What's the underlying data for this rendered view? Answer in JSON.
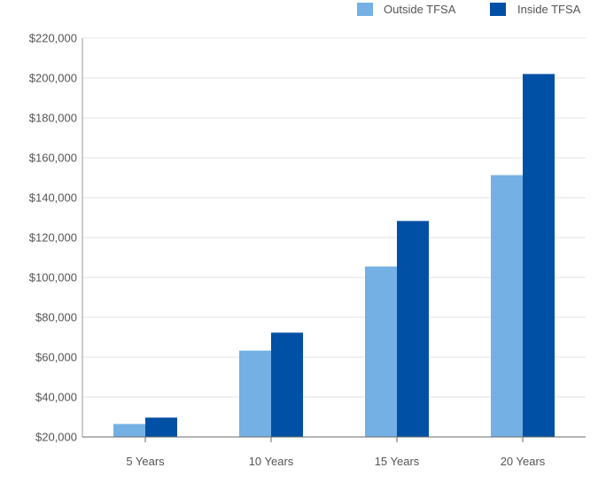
{
  "chart_data": {
    "type": "bar",
    "categories": [
      "5 Years",
      "10 Years",
      "15 Years",
      "20 Years"
    ],
    "series": [
      {
        "name": "Outside TFSA",
        "color": "#74b0e4",
        "values": [
          26500,
          63300,
          105500,
          151300
        ]
      },
      {
        "name": "Inside TFSA",
        "color": "#0050a5",
        "values": [
          29700,
          72300,
          128300,
          202000
        ]
      }
    ],
    "y_ticks": [
      "$20,000",
      "$40,000",
      "$60,000",
      "$80,000",
      "$100,000",
      "$120,000",
      "$140,000",
      "$160,000",
      "$180,000",
      "$200,000",
      "$220,000"
    ],
    "ylim": [
      20000,
      220000
    ],
    "grid": true,
    "legend_position": "top-right",
    "title": "",
    "xlabel": "",
    "ylabel": ""
  }
}
